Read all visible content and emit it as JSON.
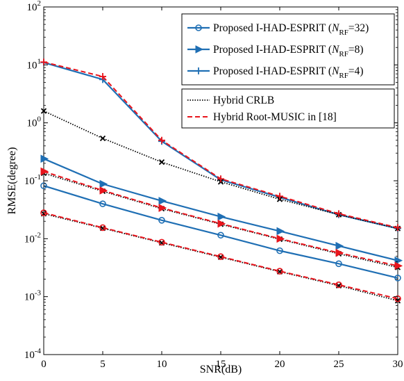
{
  "chart_data": {
    "type": "line",
    "xlabel": "SNR(dB)",
    "ylabel": "RMSE(degree)",
    "xlim": [
      0,
      30
    ],
    "ylim_log10": [
      -4,
      2
    ],
    "yscale": "log",
    "grid": false,
    "x_ticks": [
      "0",
      "5",
      "10",
      "15",
      "20",
      "25",
      "30"
    ],
    "y_ticks": [
      {
        "base": "10",
        "exp": "-4"
      },
      {
        "base": "10",
        "exp": "-3"
      },
      {
        "base": "10",
        "exp": "-2"
      },
      {
        "base": "10",
        "exp": "-1"
      },
      {
        "base": "10",
        "exp": "0"
      },
      {
        "base": "10",
        "exp": "1"
      },
      {
        "base": "10",
        "exp": "2"
      }
    ],
    "x": [
      0,
      5,
      10,
      15,
      20,
      25,
      30
    ],
    "legend": {
      "placement": "top-right",
      "box1": [
        {
          "prefix": "Proposed I-HAD-ESPRIT (",
          "italic": "N",
          "sub": "RF",
          "suffix": "=32)"
        },
        {
          "prefix": "Proposed I-HAD-ESPRIT (",
          "italic": "N",
          "sub": "RF",
          "suffix": "=8)"
        },
        {
          "prefix": "Proposed I-HAD-ESPRIT (",
          "italic": "N",
          "sub": "RF",
          "suffix": "=4)"
        }
      ],
      "box2": [
        "Hybrid CRLB",
        "Hybrid Root-MUSIC in [18]"
      ]
    },
    "colors": {
      "proposed": "#1f6fb4",
      "crlb": "#000000",
      "root_music": "#e8141c"
    },
    "series": [
      {
        "group": "proposed",
        "marker": "circle",
        "values": [
          0.082,
          0.04,
          0.0208,
          0.0115,
          0.0062,
          0.0037,
          0.0021
        ]
      },
      {
        "group": "proposed",
        "marker": "triangle-right",
        "values": [
          0.24,
          0.088,
          0.045,
          0.024,
          0.0135,
          0.0075,
          0.0042
        ]
      },
      {
        "group": "proposed",
        "marker": "plus",
        "values": [
          11.0,
          5.6,
          0.48,
          0.104,
          0.052,
          0.026,
          0.015
        ]
      },
      {
        "group": "crlb",
        "marker": "x",
        "values": [
          1.6,
          0.54,
          0.21,
          0.096,
          0.048,
          0.026,
          0.015
        ]
      },
      {
        "group": "crlb",
        "marker": "x",
        "values": [
          0.135,
          0.066,
          0.033,
          0.0178,
          0.0098,
          0.0055,
          0.0032
        ]
      },
      {
        "group": "crlb",
        "marker": "x",
        "values": [
          0.027,
          0.0152,
          0.0085,
          0.0048,
          0.0027,
          0.00155,
          0.00085
        ]
      },
      {
        "group": "root_music",
        "marker": "circle",
        "values": [
          0.028,
          0.0155,
          0.0087,
          0.0049,
          0.00275,
          0.0016,
          0.00092
        ]
      },
      {
        "group": "root_music",
        "marker": "triangle-right",
        "values": [
          0.145,
          0.068,
          0.034,
          0.0182,
          0.01,
          0.0057,
          0.0034
        ]
      },
      {
        "group": "root_music",
        "marker": "plus",
        "values": [
          11.2,
          6.3,
          0.5,
          0.108,
          0.054,
          0.027,
          0.0155
        ]
      }
    ]
  }
}
